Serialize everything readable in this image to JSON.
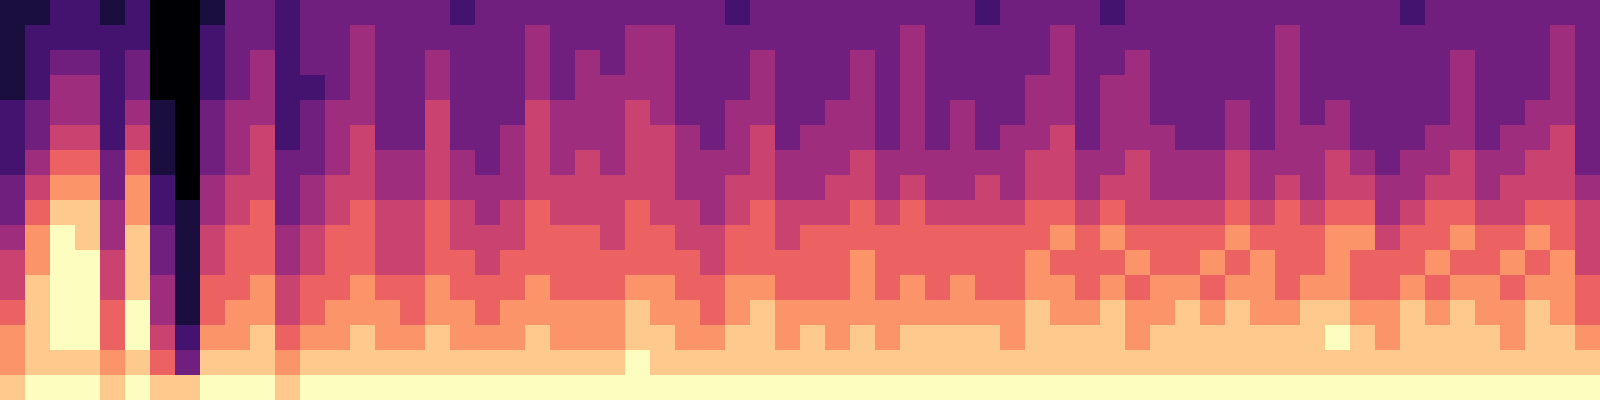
{
  "chart_data": {
    "type": "heatmap",
    "tick_labels": false,
    "cells": [
      [
        1,
        1,
        2,
        2,
        1,
        2,
        0,
        0,
        1,
        3,
        3,
        2,
        3,
        3,
        3,
        3,
        3,
        3,
        2,
        3,
        3,
        3,
        3,
        3,
        3,
        3,
        3,
        3,
        3,
        2,
        3,
        3,
        3,
        3,
        3,
        3,
        3,
        3,
        3,
        2,
        3,
        3,
        3,
        3,
        2,
        3,
        3,
        3,
        3,
        3,
        3,
        3,
        3,
        3,
        3,
        3,
        2,
        3,
        3,
        3,
        3,
        3,
        3,
        3
      ],
      [
        1,
        2,
        2,
        2,
        2,
        2,
        0,
        0,
        2,
        3,
        3,
        2,
        3,
        3,
        4,
        3,
        3,
        3,
        3,
        3,
        3,
        4,
        3,
        3,
        3,
        4,
        4,
        3,
        3,
        3,
        3,
        3,
        3,
        3,
        3,
        3,
        4,
        3,
        3,
        3,
        3,
        3,
        4,
        3,
        3,
        3,
        3,
        3,
        3,
        3,
        3,
        4,
        3,
        3,
        3,
        3,
        3,
        3,
        3,
        3,
        3,
        3,
        4,
        3
      ],
      [
        1,
        2,
        3,
        3,
        2,
        3,
        0,
        0,
        2,
        3,
        4,
        2,
        3,
        3,
        4,
        3,
        3,
        4,
        3,
        3,
        3,
        4,
        3,
        4,
        3,
        4,
        4,
        3,
        3,
        3,
        4,
        3,
        3,
        3,
        4,
        3,
        4,
        3,
        3,
        3,
        3,
        3,
        4,
        3,
        3,
        4,
        3,
        3,
        3,
        3,
        3,
        4,
        3,
        3,
        3,
        3,
        3,
        3,
        4,
        3,
        3,
        3,
        4,
        3
      ],
      [
        1,
        2,
        4,
        4,
        2,
        3,
        0,
        0,
        2,
        3,
        4,
        2,
        2,
        3,
        4,
        3,
        3,
        4,
        3,
        3,
        3,
        4,
        3,
        4,
        4,
        4,
        4,
        3,
        3,
        3,
        4,
        3,
        3,
        3,
        4,
        3,
        4,
        3,
        3,
        3,
        3,
        4,
        4,
        3,
        4,
        4,
        3,
        3,
        3,
        3,
        3,
        4,
        3,
        3,
        3,
        3,
        3,
        3,
        4,
        3,
        3,
        3,
        4,
        3
      ],
      [
        2,
        3,
        4,
        4,
        2,
        4,
        1,
        0,
        3,
        4,
        4,
        2,
        3,
        4,
        4,
        3,
        3,
        5,
        3,
        3,
        3,
        5,
        4,
        4,
        4,
        5,
        4,
        3,
        3,
        4,
        4,
        3,
        3,
        4,
        4,
        3,
        4,
        3,
        4,
        3,
        3,
        4,
        4,
        3,
        4,
        4,
        3,
        3,
        3,
        4,
        3,
        4,
        3,
        4,
        3,
        3,
        3,
        3,
        4,
        3,
        3,
        4,
        4,
        3
      ],
      [
        2,
        3,
        5,
        5,
        2,
        5,
        1,
        0,
        3,
        4,
        5,
        2,
        3,
        4,
        5,
        3,
        3,
        5,
        3,
        3,
        4,
        5,
        4,
        4,
        4,
        5,
        5,
        4,
        3,
        4,
        5,
        3,
        4,
        4,
        4,
        3,
        4,
        3,
        4,
        3,
        4,
        4,
        5,
        3,
        4,
        4,
        4,
        3,
        3,
        4,
        3,
        4,
        4,
        4,
        3,
        3,
        3,
        4,
        4,
        3,
        4,
        4,
        5,
        3
      ],
      [
        2,
        4,
        6,
        6,
        3,
        6,
        1,
        0,
        3,
        4,
        5,
        3,
        3,
        4,
        5,
        4,
        4,
        5,
        4,
        3,
        4,
        5,
        4,
        5,
        4,
        5,
        5,
        4,
        4,
        4,
        5,
        4,
        4,
        4,
        5,
        4,
        4,
        4,
        4,
        4,
        4,
        5,
        5,
        4,
        4,
        5,
        4,
        4,
        4,
        5,
        4,
        4,
        4,
        5,
        4,
        3,
        4,
        4,
        5,
        4,
        4,
        5,
        5,
        3
      ],
      [
        3,
        5,
        7,
        7,
        3,
        7,
        2,
        0,
        4,
        5,
        5,
        3,
        4,
        5,
        5,
        4,
        4,
        5,
        4,
        4,
        4,
        5,
        5,
        5,
        5,
        5,
        5,
        4,
        4,
        5,
        5,
        4,
        4,
        5,
        5,
        4,
        5,
        4,
        4,
        5,
        4,
        5,
        5,
        4,
        5,
        5,
        4,
        4,
        4,
        5,
        4,
        5,
        4,
        5,
        5,
        4,
        4,
        5,
        5,
        4,
        5,
        5,
        5,
        4
      ],
      [
        3,
        6,
        8,
        8,
        4,
        7,
        2,
        1,
        4,
        5,
        6,
        3,
        4,
        5,
        6,
        5,
        5,
        6,
        5,
        4,
        5,
        6,
        5,
        5,
        5,
        6,
        5,
        5,
        4,
        5,
        6,
        5,
        5,
        5,
        6,
        5,
        6,
        5,
        5,
        5,
        5,
        6,
        6,
        5,
        6,
        5,
        5,
        5,
        5,
        6,
        5,
        6,
        5,
        6,
        6,
        4,
        5,
        6,
        6,
        5,
        5,
        6,
        6,
        5
      ],
      [
        4,
        7,
        9,
        8,
        4,
        8,
        3,
        1,
        5,
        6,
        6,
        4,
        5,
        6,
        6,
        5,
        5,
        6,
        5,
        5,
        5,
        6,
        6,
        6,
        5,
        6,
        6,
        5,
        5,
        6,
        6,
        5,
        6,
        6,
        6,
        6,
        6,
        6,
        6,
        6,
        6,
        6,
        7,
        6,
        7,
        6,
        6,
        6,
        6,
        7,
        6,
        6,
        6,
        7,
        7,
        5,
        6,
        6,
        7,
        6,
        6,
        7,
        6,
        5
      ],
      [
        5,
        7,
        9,
        9,
        5,
        8,
        3,
        1,
        5,
        6,
        6,
        4,
        5,
        6,
        6,
        5,
        5,
        6,
        6,
        5,
        6,
        6,
        6,
        6,
        6,
        6,
        6,
        6,
        5,
        6,
        6,
        6,
        6,
        6,
        7,
        6,
        6,
        6,
        6,
        6,
        6,
        7,
        6,
        6,
        6,
        7,
        6,
        6,
        7,
        6,
        7,
        6,
        6,
        7,
        6,
        6,
        6,
        7,
        6,
        6,
        7,
        6,
        7,
        5
      ],
      [
        5,
        8,
        9,
        9,
        5,
        8,
        4,
        1,
        6,
        6,
        7,
        5,
        6,
        6,
        7,
        6,
        6,
        7,
        6,
        6,
        6,
        7,
        6,
        6,
        6,
        7,
        7,
        6,
        6,
        7,
        7,
        6,
        6,
        6,
        7,
        6,
        7,
        6,
        7,
        6,
        6,
        7,
        7,
        6,
        7,
        6,
        7,
        7,
        6,
        7,
        7,
        6,
        7,
        7,
        6,
        6,
        7,
        6,
        7,
        7,
        6,
        7,
        7,
        6
      ],
      [
        6,
        8,
        9,
        9,
        6,
        9,
        4,
        1,
        6,
        7,
        7,
        5,
        6,
        7,
        7,
        7,
        6,
        7,
        7,
        6,
        7,
        7,
        7,
        7,
        7,
        8,
        7,
        7,
        6,
        7,
        8,
        7,
        7,
        7,
        7,
        7,
        7,
        7,
        7,
        7,
        7,
        8,
        7,
        7,
        8,
        7,
        7,
        8,
        7,
        8,
        7,
        7,
        8,
        8,
        7,
        7,
        8,
        7,
        8,
        7,
        7,
        8,
        7,
        6
      ],
      [
        7,
        8,
        9,
        9,
        6,
        9,
        5,
        2,
        7,
        7,
        8,
        6,
        7,
        7,
        8,
        7,
        7,
        8,
        7,
        7,
        7,
        8,
        7,
        7,
        7,
        8,
        8,
        7,
        7,
        8,
        8,
        7,
        8,
        7,
        8,
        7,
        8,
        8,
        8,
        8,
        7,
        8,
        8,
        8,
        8,
        7,
        8,
        8,
        8,
        8,
        8,
        8,
        8,
        9,
        8,
        7,
        8,
        8,
        8,
        8,
        7,
        8,
        8,
        7
      ],
      [
        7,
        8,
        8,
        8,
        7,
        8,
        6,
        3,
        8,
        8,
        8,
        7,
        8,
        8,
        8,
        8,
        8,
        8,
        8,
        8,
        8,
        8,
        8,
        8,
        8,
        9,
        8,
        8,
        8,
        8,
        8,
        8,
        8,
        8,
        8,
        8,
        8,
        8,
        8,
        8,
        8,
        8,
        8,
        8,
        8,
        8,
        8,
        8,
        8,
        8,
        8,
        8,
        8,
        8,
        8,
        8,
        8,
        8,
        8,
        8,
        8,
        8,
        8,
        8
      ],
      [
        8,
        9,
        9,
        9,
        8,
        9,
        8,
        8,
        9,
        9,
        9,
        8,
        9,
        9,
        9,
        9,
        9,
        9,
        9,
        9,
        9,
        9,
        9,
        9,
        9,
        9,
        9,
        9,
        9,
        9,
        9,
        9,
        9,
        9,
        9,
        9,
        9,
        9,
        9,
        9,
        9,
        9,
        9,
        9,
        9,
        9,
        9,
        9,
        9,
        9,
        9,
        9,
        9,
        9,
        9,
        9,
        9,
        9,
        9,
        9,
        9,
        9,
        9,
        9
      ]
    ]
  }
}
